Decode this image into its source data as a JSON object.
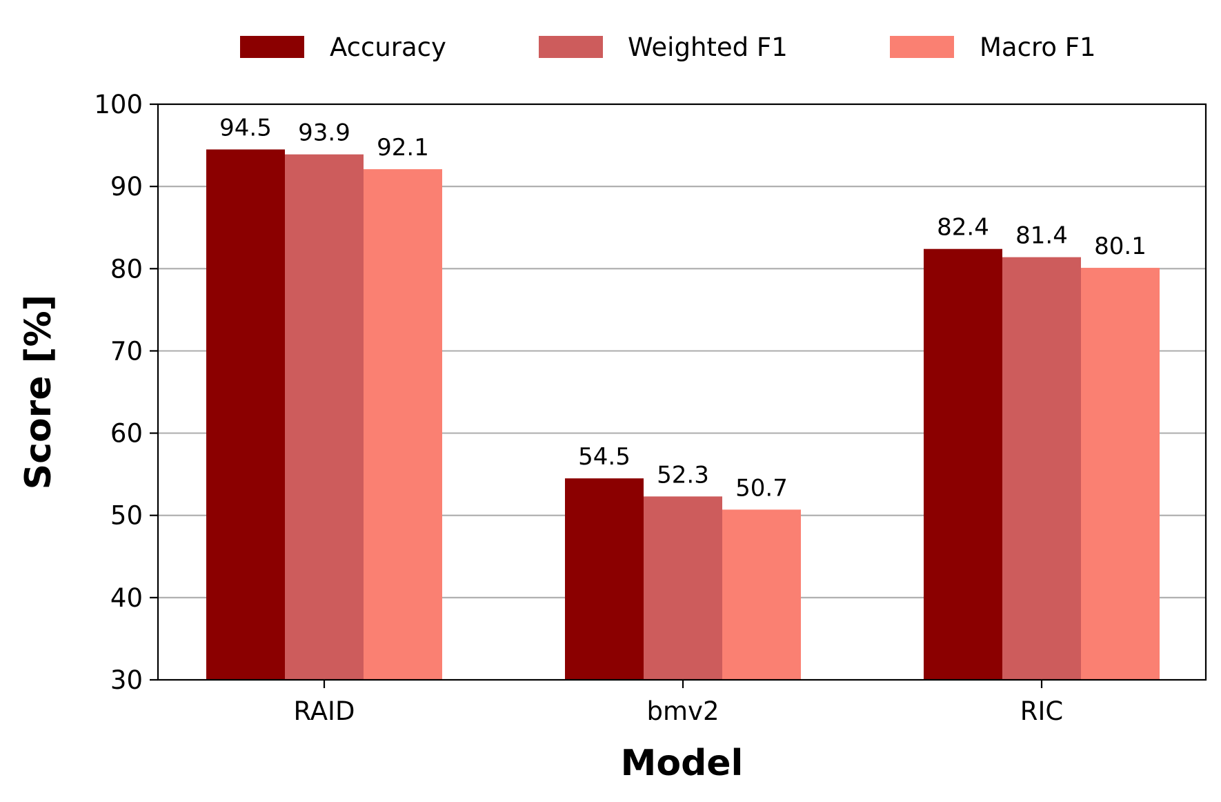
{
  "chart_data": {
    "type": "bar",
    "title": "",
    "xlabel": "Model",
    "ylabel": "Score [%]",
    "categories": [
      "RAID",
      "bmv2",
      "RIC"
    ],
    "series": [
      {
        "name": "Accuracy",
        "color": "#8b0000",
        "values": [
          94.5,
          54.5,
          82.4
        ]
      },
      {
        "name": "Weighted F1",
        "color": "#cd5c5c",
        "values": [
          93.9,
          52.3,
          81.4
        ]
      },
      {
        "name": "Macro F1",
        "color": "#fa8072",
        "values": [
          92.1,
          50.7,
          80.1
        ]
      }
    ],
    "ylim": [
      30,
      100
    ],
    "yticks": [
      30,
      40,
      50,
      60,
      70,
      80,
      90,
      100
    ],
    "grid": "y",
    "legend": "top-center",
    "value_labels": true
  }
}
